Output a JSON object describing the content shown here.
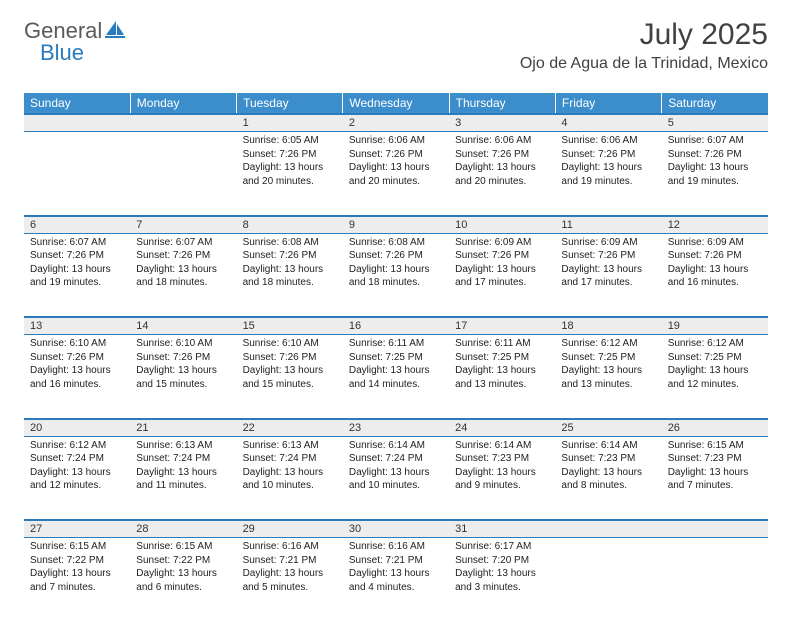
{
  "logo": {
    "general": "General",
    "blue": "Blue"
  },
  "title": "July 2025",
  "location": "Ojo de Agua de la Trinidad, Mexico",
  "colors": {
    "header_bg": "#3c8dcc",
    "header_text": "#ffffff",
    "rule": "#2a7ac0",
    "daynum_bg": "#ededed",
    "text": "#222222",
    "logo_gray": "#5a5a5a",
    "logo_blue": "#2a7ac0"
  },
  "weekdays": [
    "Sunday",
    "Monday",
    "Tuesday",
    "Wednesday",
    "Thursday",
    "Friday",
    "Saturday"
  ],
  "weeks": [
    [
      {
        "d": "",
        "sr": "",
        "ss": "",
        "dl1": "",
        "dl2": ""
      },
      {
        "d": "",
        "sr": "",
        "ss": "",
        "dl1": "",
        "dl2": ""
      },
      {
        "d": "1",
        "sr": "Sunrise: 6:05 AM",
        "ss": "Sunset: 7:26 PM",
        "dl1": "Daylight: 13 hours",
        "dl2": "and 20 minutes."
      },
      {
        "d": "2",
        "sr": "Sunrise: 6:06 AM",
        "ss": "Sunset: 7:26 PM",
        "dl1": "Daylight: 13 hours",
        "dl2": "and 20 minutes."
      },
      {
        "d": "3",
        "sr": "Sunrise: 6:06 AM",
        "ss": "Sunset: 7:26 PM",
        "dl1": "Daylight: 13 hours",
        "dl2": "and 20 minutes."
      },
      {
        "d": "4",
        "sr": "Sunrise: 6:06 AM",
        "ss": "Sunset: 7:26 PM",
        "dl1": "Daylight: 13 hours",
        "dl2": "and 19 minutes."
      },
      {
        "d": "5",
        "sr": "Sunrise: 6:07 AM",
        "ss": "Sunset: 7:26 PM",
        "dl1": "Daylight: 13 hours",
        "dl2": "and 19 minutes."
      }
    ],
    [
      {
        "d": "6",
        "sr": "Sunrise: 6:07 AM",
        "ss": "Sunset: 7:26 PM",
        "dl1": "Daylight: 13 hours",
        "dl2": "and 19 minutes."
      },
      {
        "d": "7",
        "sr": "Sunrise: 6:07 AM",
        "ss": "Sunset: 7:26 PM",
        "dl1": "Daylight: 13 hours",
        "dl2": "and 18 minutes."
      },
      {
        "d": "8",
        "sr": "Sunrise: 6:08 AM",
        "ss": "Sunset: 7:26 PM",
        "dl1": "Daylight: 13 hours",
        "dl2": "and 18 minutes."
      },
      {
        "d": "9",
        "sr": "Sunrise: 6:08 AM",
        "ss": "Sunset: 7:26 PM",
        "dl1": "Daylight: 13 hours",
        "dl2": "and 18 minutes."
      },
      {
        "d": "10",
        "sr": "Sunrise: 6:09 AM",
        "ss": "Sunset: 7:26 PM",
        "dl1": "Daylight: 13 hours",
        "dl2": "and 17 minutes."
      },
      {
        "d": "11",
        "sr": "Sunrise: 6:09 AM",
        "ss": "Sunset: 7:26 PM",
        "dl1": "Daylight: 13 hours",
        "dl2": "and 17 minutes."
      },
      {
        "d": "12",
        "sr": "Sunrise: 6:09 AM",
        "ss": "Sunset: 7:26 PM",
        "dl1": "Daylight: 13 hours",
        "dl2": "and 16 minutes."
      }
    ],
    [
      {
        "d": "13",
        "sr": "Sunrise: 6:10 AM",
        "ss": "Sunset: 7:26 PM",
        "dl1": "Daylight: 13 hours",
        "dl2": "and 16 minutes."
      },
      {
        "d": "14",
        "sr": "Sunrise: 6:10 AM",
        "ss": "Sunset: 7:26 PM",
        "dl1": "Daylight: 13 hours",
        "dl2": "and 15 minutes."
      },
      {
        "d": "15",
        "sr": "Sunrise: 6:10 AM",
        "ss": "Sunset: 7:26 PM",
        "dl1": "Daylight: 13 hours",
        "dl2": "and 15 minutes."
      },
      {
        "d": "16",
        "sr": "Sunrise: 6:11 AM",
        "ss": "Sunset: 7:25 PM",
        "dl1": "Daylight: 13 hours",
        "dl2": "and 14 minutes."
      },
      {
        "d": "17",
        "sr": "Sunrise: 6:11 AM",
        "ss": "Sunset: 7:25 PM",
        "dl1": "Daylight: 13 hours",
        "dl2": "and 13 minutes."
      },
      {
        "d": "18",
        "sr": "Sunrise: 6:12 AM",
        "ss": "Sunset: 7:25 PM",
        "dl1": "Daylight: 13 hours",
        "dl2": "and 13 minutes."
      },
      {
        "d": "19",
        "sr": "Sunrise: 6:12 AM",
        "ss": "Sunset: 7:25 PM",
        "dl1": "Daylight: 13 hours",
        "dl2": "and 12 minutes."
      }
    ],
    [
      {
        "d": "20",
        "sr": "Sunrise: 6:12 AM",
        "ss": "Sunset: 7:24 PM",
        "dl1": "Daylight: 13 hours",
        "dl2": "and 12 minutes."
      },
      {
        "d": "21",
        "sr": "Sunrise: 6:13 AM",
        "ss": "Sunset: 7:24 PM",
        "dl1": "Daylight: 13 hours",
        "dl2": "and 11 minutes."
      },
      {
        "d": "22",
        "sr": "Sunrise: 6:13 AM",
        "ss": "Sunset: 7:24 PM",
        "dl1": "Daylight: 13 hours",
        "dl2": "and 10 minutes."
      },
      {
        "d": "23",
        "sr": "Sunrise: 6:14 AM",
        "ss": "Sunset: 7:24 PM",
        "dl1": "Daylight: 13 hours",
        "dl2": "and 10 minutes."
      },
      {
        "d": "24",
        "sr": "Sunrise: 6:14 AM",
        "ss": "Sunset: 7:23 PM",
        "dl1": "Daylight: 13 hours",
        "dl2": "and 9 minutes."
      },
      {
        "d": "25",
        "sr": "Sunrise: 6:14 AM",
        "ss": "Sunset: 7:23 PM",
        "dl1": "Daylight: 13 hours",
        "dl2": "and 8 minutes."
      },
      {
        "d": "26",
        "sr": "Sunrise: 6:15 AM",
        "ss": "Sunset: 7:23 PM",
        "dl1": "Daylight: 13 hours",
        "dl2": "and 7 minutes."
      }
    ],
    [
      {
        "d": "27",
        "sr": "Sunrise: 6:15 AM",
        "ss": "Sunset: 7:22 PM",
        "dl1": "Daylight: 13 hours",
        "dl2": "and 7 minutes."
      },
      {
        "d": "28",
        "sr": "Sunrise: 6:15 AM",
        "ss": "Sunset: 7:22 PM",
        "dl1": "Daylight: 13 hours",
        "dl2": "and 6 minutes."
      },
      {
        "d": "29",
        "sr": "Sunrise: 6:16 AM",
        "ss": "Sunset: 7:21 PM",
        "dl1": "Daylight: 13 hours",
        "dl2": "and 5 minutes."
      },
      {
        "d": "30",
        "sr": "Sunrise: 6:16 AM",
        "ss": "Sunset: 7:21 PM",
        "dl1": "Daylight: 13 hours",
        "dl2": "and 4 minutes."
      },
      {
        "d": "31",
        "sr": "Sunrise: 6:17 AM",
        "ss": "Sunset: 7:20 PM",
        "dl1": "Daylight: 13 hours",
        "dl2": "and 3 minutes."
      },
      {
        "d": "",
        "sr": "",
        "ss": "",
        "dl1": "",
        "dl2": ""
      },
      {
        "d": "",
        "sr": "",
        "ss": "",
        "dl1": "",
        "dl2": ""
      }
    ]
  ]
}
